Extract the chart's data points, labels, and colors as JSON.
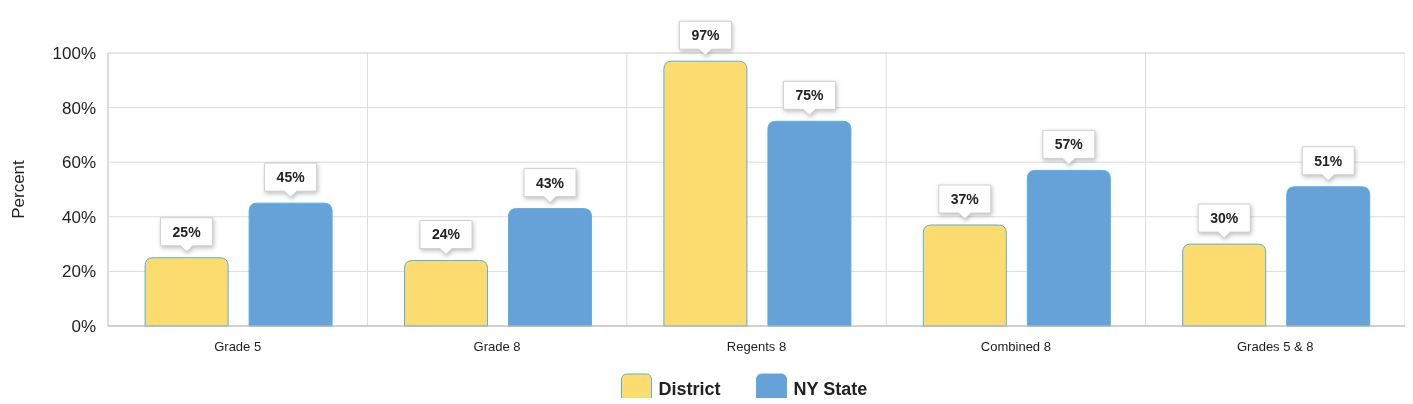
{
  "chart_data": {
    "type": "bar",
    "ylabel": "Percent",
    "categories": [
      "Grade 5",
      "Grade 8",
      "Regents 8",
      "Combined 8",
      "Grades 5 & 8"
    ],
    "series": [
      {
        "name": "District",
        "color": "#fddc6f",
        "values": [
          25,
          24,
          97,
          37,
          30
        ],
        "value_labels": [
          "25%",
          "24%",
          "97%",
          "37%",
          "30%"
        ]
      },
      {
        "name": "NY State",
        "color": "#66a1d8",
        "values": [
          45,
          43,
          75,
          57,
          51
        ],
        "value_labels": [
          "45%",
          "43%",
          "75%",
          "57%",
          "51%"
        ]
      }
    ],
    "ylim": [
      0,
      100
    ],
    "yticks": [
      {
        "value": 0,
        "label": "0%"
      },
      {
        "value": 20,
        "label": "20%"
      },
      {
        "value": 40,
        "label": "40%"
      },
      {
        "value": 60,
        "label": "60%"
      },
      {
        "value": 80,
        "label": "80%"
      },
      {
        "value": 100,
        "label": "100%"
      }
    ],
    "grid": true,
    "legend": "bottom"
  }
}
